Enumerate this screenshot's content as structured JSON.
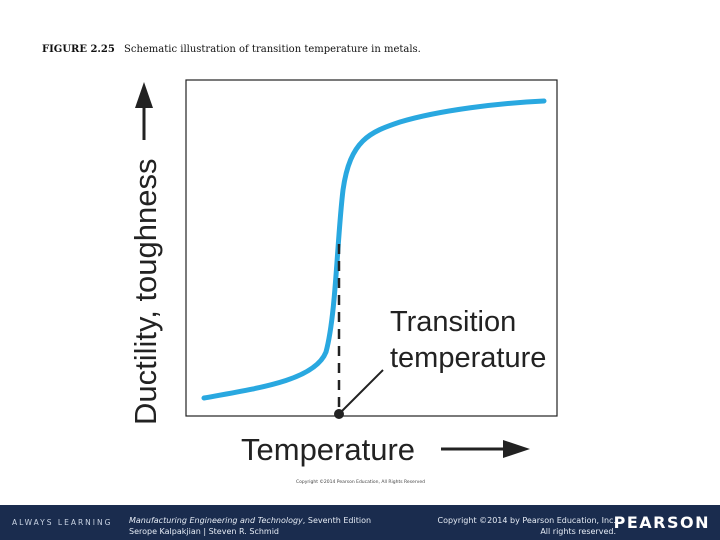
{
  "caption": {
    "figure_number": "FIGURE 2.25",
    "text": "Schematic illustration of transition temperature in metals."
  },
  "diagram": {
    "y_axis_label": "Ductility, toughness",
    "x_axis_label": "Temperature",
    "annotation": [
      "Transition",
      "temperature"
    ],
    "credit": "Copyright ©2014 Pearson Education, All Rights Reserved",
    "curve_color": "#29a8e0"
  },
  "footer": {
    "brand_tagline": "ALWAYS LEARNING",
    "book_title": "Manufacturing Engineering and Technology",
    "book_edition": ", Seventh Edition",
    "authors": "Serope Kalpakjian | Steven R. Schmid",
    "copyright_line1": "Copyright ©2014 by Pearson Education, Inc.",
    "copyright_line2": "All rights reserved.",
    "publisher": "PEARSON"
  }
}
